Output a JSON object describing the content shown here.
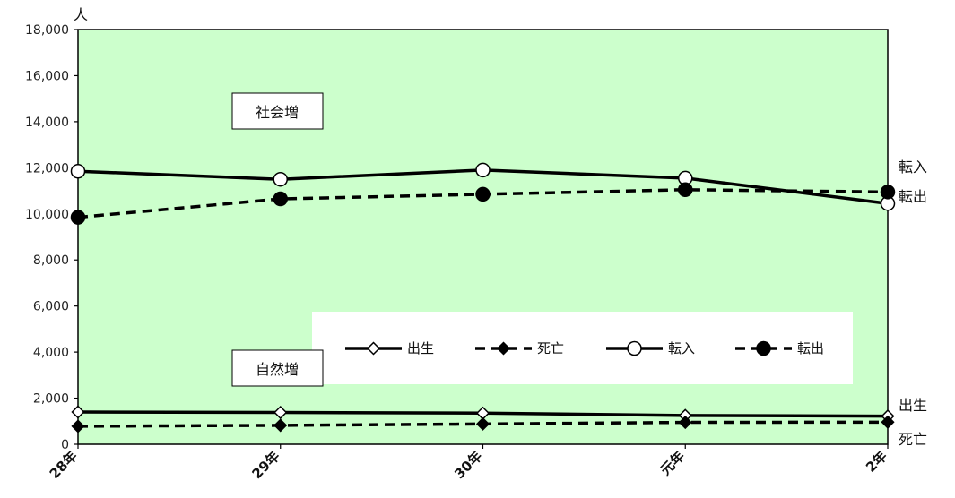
{
  "chart_data": {
    "type": "line",
    "unit": "人",
    "categories": [
      "28年",
      "29年",
      "30年",
      "元年",
      "2年"
    ],
    "ylim": [
      0,
      18000
    ],
    "yticks": [
      "0",
      "2,000",
      "4,000",
      "6,000",
      "8,000",
      "10,000",
      "12,000",
      "14,000",
      "16,000",
      "18,000"
    ],
    "grid": false,
    "legend_position": "bottom-center",
    "background_color": "#ccffcc",
    "series": [
      {
        "name": "出生",
        "values": [
          1400,
          1380,
          1350,
          1250,
          1220
        ],
        "line": "solid",
        "marker": "diamond-open",
        "end_label": "出生"
      },
      {
        "name": "死亡",
        "values": [
          780,
          820,
          880,
          950,
          960
        ],
        "line": "dashed",
        "marker": "diamond-filled",
        "end_label": "死亡"
      },
      {
        "name": "転入",
        "values": [
          11850,
          11500,
          11900,
          11550,
          10450
        ],
        "line": "solid",
        "marker": "circle-open",
        "end_label": "転入"
      },
      {
        "name": "転出",
        "values": [
          9850,
          10650,
          10850,
          11050,
          10950
        ],
        "line": "dashed",
        "marker": "circle-filled",
        "end_label": "転出"
      }
    ],
    "annotations": [
      "社会増",
      "自然増"
    ]
  }
}
